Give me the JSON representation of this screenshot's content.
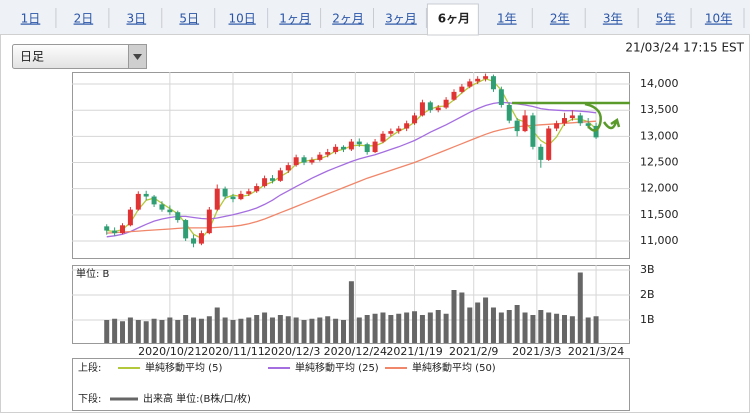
{
  "tabs": [
    "1日",
    "2日",
    "3日",
    "5日",
    "10日",
    "1ヶ月",
    "2ヶ月",
    "3ヶ月",
    "6ヶ月",
    "1年",
    "2年",
    "3年",
    "5年",
    "10年"
  ],
  "active_tab": 8,
  "dropdown": "日足",
  "timestamp": "21/03/24 17:15 EST",
  "chart_data": [
    {
      "type": "candlestick",
      "up_color": "#e03434",
      "down_color": "#2f9e74",
      "ohlc": [
        [
          11280,
          11320,
          11120,
          11200
        ],
        [
          11200,
          11260,
          11100,
          11150
        ],
        [
          11150,
          11340,
          11130,
          11300
        ],
        [
          11300,
          11650,
          11280,
          11600
        ],
        [
          11600,
          11950,
          11580,
          11900
        ],
        [
          11900,
          11960,
          11780,
          11850
        ],
        [
          11850,
          11880,
          11650,
          11700
        ],
        [
          11700,
          11760,
          11560,
          11600
        ],
        [
          11600,
          11680,
          11500,
          11550
        ],
        [
          11550,
          11580,
          11350,
          11400
        ],
        [
          11400,
          11420,
          11000,
          11050
        ],
        [
          11050,
          11120,
          10880,
          10950
        ],
        [
          10950,
          11200,
          10920,
          11150
        ],
        [
          11150,
          11650,
          11130,
          11600
        ],
        [
          11600,
          12080,
          11580,
          12000
        ],
        [
          12000,
          12040,
          11800,
          11850
        ],
        [
          11850,
          11900,
          11740,
          11800
        ],
        [
          11800,
          11960,
          11780,
          11900
        ],
        [
          11900,
          12000,
          11860,
          11950
        ],
        [
          11950,
          12100,
          11920,
          12050
        ],
        [
          12050,
          12250,
          12020,
          12200
        ],
        [
          12200,
          12260,
          12100,
          12150
        ],
        [
          12150,
          12400,
          12130,
          12350
        ],
        [
          12350,
          12500,
          12300,
          12450
        ],
        [
          12450,
          12650,
          12420,
          12600
        ],
        [
          12600,
          12640,
          12450,
          12500
        ],
        [
          12500,
          12600,
          12460,
          12550
        ],
        [
          12550,
          12700,
          12520,
          12650
        ],
        [
          12650,
          12760,
          12600,
          12700
        ],
        [
          12700,
          12850,
          12660,
          12800
        ],
        [
          12800,
          12830,
          12700,
          12750
        ],
        [
          12750,
          12950,
          12720,
          12900
        ],
        [
          12900,
          12960,
          12800,
          12850
        ],
        [
          12850,
          12880,
          12650,
          12700
        ],
        [
          12700,
          12950,
          12680,
          12900
        ],
        [
          12900,
          13100,
          12870,
          13050
        ],
        [
          13050,
          13150,
          13000,
          13100
        ],
        [
          13100,
          13200,
          13050,
          13150
        ],
        [
          13150,
          13300,
          13100,
          13250
        ],
        [
          13250,
          13450,
          13220,
          13400
        ],
        [
          13400,
          13700,
          13380,
          13650
        ],
        [
          13650,
          13680,
          13450,
          13500
        ],
        [
          13500,
          13600,
          13460,
          13550
        ],
        [
          13550,
          13750,
          13520,
          13700
        ],
        [
          13700,
          13900,
          13680,
          13850
        ],
        [
          13850,
          14000,
          13820,
          13950
        ],
        [
          13950,
          14100,
          13920,
          14050
        ],
        [
          14050,
          14150,
          14000,
          14100
        ],
        [
          14100,
          14200,
          14050,
          14150
        ],
        [
          14150,
          14180,
          13850,
          13900
        ],
        [
          13900,
          13950,
          13550,
          13600
        ],
        [
          13600,
          13650,
          13250,
          13300
        ],
        [
          13300,
          13350,
          13000,
          13100
        ],
        [
          13100,
          13500,
          13080,
          13400
        ],
        [
          13400,
          13450,
          12750,
          12800
        ],
        [
          12800,
          12850,
          12400,
          12550
        ],
        [
          12550,
          13200,
          12530,
          13150
        ],
        [
          13150,
          13300,
          13100,
          13250
        ],
        [
          13250,
          13450,
          13200,
          13350
        ],
        [
          13350,
          13500,
          13300,
          13400
        ],
        [
          13400,
          13450,
          13200,
          13250
        ],
        [
          13250,
          13350,
          13150,
          13200
        ],
        [
          13200,
          13260,
          12950,
          12980
        ]
      ],
      "series": [
        {
          "name": "単純移動平均 (5)",
          "color": "#b3c83a",
          "values": [
            11200,
            11180,
            11220,
            11350,
            11600,
            11780,
            11820,
            11720,
            11620,
            11520,
            11330,
            11130,
            11050,
            11230,
            11580,
            11820,
            11880,
            11850,
            11880,
            11970,
            12070,
            12130,
            12230,
            12320,
            12470,
            12520,
            12550,
            12570,
            12630,
            12720,
            12750,
            12820,
            12830,
            12820,
            12820,
            12880,
            13000,
            13100,
            13170,
            13270,
            13430,
            13520,
            13570,
            13580,
            13700,
            13830,
            13950,
            14030,
            14100,
            14050,
            13880,
            13600,
            13330,
            13270,
            13100,
            12920,
            12830,
            12990,
            13250,
            13330,
            13330,
            13280,
            13140
          ]
        },
        {
          "name": "単純移動平均 (25)",
          "color": "#a56ee0",
          "values": [
            11080,
            11100,
            11130,
            11180,
            11250,
            11320,
            11380,
            11420,
            11450,
            11470,
            11470,
            11450,
            11430,
            11420,
            11440,
            11470,
            11500,
            11540,
            11580,
            11630,
            11700,
            11780,
            11880,
            11960,
            12040,
            12120,
            12200,
            12270,
            12340,
            12400,
            12460,
            12520,
            12570,
            12610,
            12650,
            12700,
            12750,
            12800,
            12860,
            12920,
            13000,
            13080,
            13150,
            13220,
            13300,
            13380,
            13460,
            13530,
            13590,
            13630,
            13650,
            13640,
            13620,
            13600,
            13570,
            13530,
            13510,
            13500,
            13490,
            13490,
            13480,
            13470,
            13450
          ]
        },
        {
          "name": "単純移動平均 (50)",
          "color": "#f0866a",
          "values": [
            11150,
            11160,
            11170,
            11180,
            11190,
            11200,
            11210,
            11220,
            11230,
            11240,
            11250,
            11250,
            11250,
            11250,
            11260,
            11270,
            11280,
            11300,
            11330,
            11370,
            11420,
            11480,
            11540,
            11600,
            11660,
            11720,
            11780,
            11840,
            11900,
            11960,
            12020,
            12080,
            12140,
            12200,
            12250,
            12300,
            12350,
            12400,
            12450,
            12500,
            12560,
            12620,
            12680,
            12740,
            12800,
            12860,
            12920,
            12980,
            13040,
            13090,
            13130,
            13160,
            13180,
            13200,
            13210,
            13220,
            13230,
            13240,
            13250,
            13260,
            13270,
            13280,
            13290
          ]
        }
      ],
      "xlim": [
        -4.4,
        66.3
      ],
      "ylim": [
        10675,
        14230
      ],
      "yticks": [
        {
          "value": 14000,
          "label": "14,000"
        },
        {
          "value": 13500,
          "label": "13,500"
        },
        {
          "value": 13000,
          "label": "13,000"
        },
        {
          "value": 12500,
          "label": "12,500"
        },
        {
          "value": 12000,
          "label": "12,000"
        },
        {
          "value": 11500,
          "label": "11,500"
        },
        {
          "value": 11000,
          "label": "11,000"
        }
      ],
      "grid": true
    },
    {
      "type": "bar",
      "unit_label": "単位: B",
      "series": [
        {
          "name": "出来高 単位:(B株/口/枚)",
          "color": "#666666",
          "values": [
            1.0,
            1.05,
            0.95,
            1.1,
            1.0,
            0.95,
            1.05,
            1.0,
            1.1,
            1.0,
            1.2,
            1.1,
            1.05,
            1.15,
            1.5,
            1.1,
            1.0,
            1.05,
            1.1,
            1.2,
            1.3,
            1.1,
            1.2,
            1.15,
            1.1,
            1.0,
            1.05,
            1.1,
            1.15,
            1.05,
            1.0,
            2.55,
            1.1,
            1.2,
            1.25,
            1.3,
            1.2,
            1.25,
            1.3,
            1.35,
            1.2,
            1.3,
            1.4,
            1.25,
            2.2,
            2.1,
            1.5,
            1.7,
            1.9,
            1.5,
            1.3,
            1.4,
            1.6,
            1.3,
            1.2,
            1.4,
            1.3,
            1.25,
            1.2,
            1.15,
            2.9,
            1.1,
            1.15
          ]
        }
      ],
      "xlim": [
        -4.4,
        66.3
      ],
      "ylim": [
        0,
        3.2
      ],
      "yticks": [
        {
          "value": 3,
          "label": "3B"
        },
        {
          "value": 2,
          "label": "2B"
        },
        {
          "value": 1,
          "label": "1B"
        }
      ],
      "xticks": [
        {
          "value": 8,
          "label": "2020/10/21"
        },
        {
          "value": 16,
          "label": "2020/11/11"
        },
        {
          "value": 23.5,
          "label": "2020/12/3"
        },
        {
          "value": 31.5,
          "label": "2020/12/24"
        },
        {
          "value": 39,
          "label": "2021/1/19"
        },
        {
          "value": 46.5,
          "label": "2021/2/9"
        },
        {
          "value": 54.5,
          "label": "2021/3/3"
        },
        {
          "value": 62,
          "label": "2021/3/24"
        }
      ],
      "grid": true
    }
  ],
  "legend": {
    "upper": "上段:",
    "lower": "下段:"
  }
}
